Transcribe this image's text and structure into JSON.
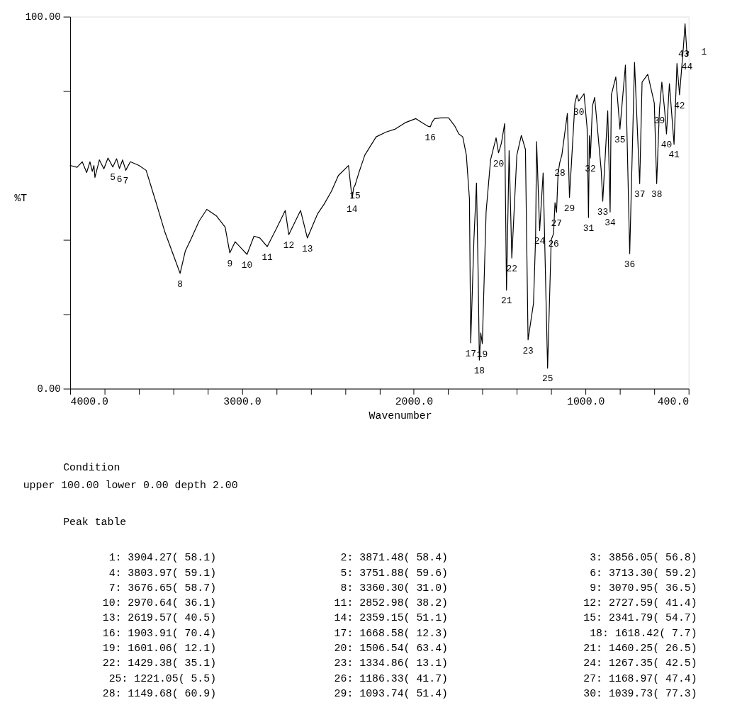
{
  "chart_data": {
    "type": "line",
    "xlabel": "Wavenumber",
    "ylabel": "%T",
    "xlim": [
      4000,
      400
    ],
    "xticks": [
      {
        "value": 4000,
        "label": "4000.0"
      },
      {
        "value": 3800,
        "label": null
      },
      {
        "value": 3600,
        "label": null
      },
      {
        "value": 3400,
        "label": null
      },
      {
        "value": 3200,
        "label": null
      },
      {
        "value": 3000,
        "label": "3000.0"
      },
      {
        "value": 2800,
        "label": null
      },
      {
        "value": 2600,
        "label": null
      },
      {
        "value": 2400,
        "label": null
      },
      {
        "value": 2200,
        "label": null
      },
      {
        "value": 2000,
        "label": "2000.0"
      },
      {
        "value": 1800,
        "label": null
      },
      {
        "value": 1600,
        "label": null
      },
      {
        "value": 1400,
        "label": null
      },
      {
        "value": 1200,
        "label": null
      },
      {
        "value": 1000,
        "label": "1000.0"
      },
      {
        "value": 800,
        "label": null
      },
      {
        "value": 600,
        "label": null
      },
      {
        "value": 400,
        "label": "400.0"
      }
    ],
    "ylim": [
      0,
      100
    ],
    "yticks": [
      {
        "value": 0,
        "label": "0.00"
      },
      {
        "value": 20,
        "label": null
      },
      {
        "value": 40,
        "label": null
      },
      {
        "value": 80,
        "label": null
      },
      {
        "value": 100,
        "label": "100.00"
      }
    ],
    "grid": false,
    "marker": "none",
    "line_style": "solid",
    "series": [
      {
        "color": "#000000",
        "x": [
          4000,
          3960,
          3930,
          3904.27,
          3885,
          3871.48,
          3862,
          3856.05,
          3830,
          3803.97,
          3780,
          3751.88,
          3730,
          3713.3,
          3695,
          3676.65,
          3650,
          3600,
          3558,
          3500,
          3448,
          3400,
          3360.3,
          3330,
          3294,
          3250,
          3205,
          3150,
          3098,
          3070.95,
          3040,
          3009,
          2970.64,
          2930,
          2896,
          2852.98,
          2800,
          2748,
          2727.59,
          2700,
          2659,
          2619.57,
          2560,
          2522,
          2480,
          2439,
          2380,
          2359.15,
          2350,
          2341.79,
          2320,
          2285,
          2219,
          2160,
          2107,
          2050,
          1988,
          1944,
          1915,
          1903.91,
          1895,
          1879,
          1840,
          1797,
          1760,
          1738,
          1715,
          1694,
          1676,
          1668.58,
          1650,
          1635,
          1625,
          1618.42,
          1610,
          1601.06,
          1579,
          1553,
          1521,
          1506.54,
          1490,
          1471,
          1460.25,
          1445,
          1429.38,
          1400,
          1374,
          1350,
          1334.86,
          1303,
          1291,
          1285,
          1267.35,
          1247,
          1221.05,
          1200,
          1186.33,
          1178,
          1168.97,
          1160,
          1149.68,
          1138,
          1106,
          1093.74,
          1062,
          1050,
          1039.73,
          1009,
          991,
          983,
          978,
          972,
          960,
          947,
          909,
          900,
          871,
          857,
          850,
          824,
          800,
          768,
          743,
          715,
          685,
          671,
          638,
          600,
          586,
          570,
          556,
          540,
          529,
          512,
          485,
          468,
          453,
          429,
          421,
          409,
          400
        ],
        "values": [
          60,
          59.5,
          61,
          58.1,
          61,
          58.4,
          60,
          56.8,
          61.5,
          59.1,
          62,
          59.6,
          61.8,
          59.2,
          61.5,
          58.7,
          61,
          60,
          58.7,
          50,
          42,
          36,
          31.0,
          37,
          40.5,
          45,
          48.2,
          46.5,
          43.4,
          36.5,
          39.5,
          38,
          36.1,
          41,
          40.5,
          38.2,
          43,
          47.9,
          41.4,
          44,
          47.9,
          40.5,
          47,
          49.6,
          53,
          57.3,
          60,
          51.1,
          54,
          54.7,
          58,
          62.8,
          67.7,
          69,
          69.8,
          71.5,
          72.6,
          71.3,
          70.5,
          70.4,
          71.5,
          72.6,
          72.8,
          72.8,
          70.5,
          68.5,
          67.7,
          62.8,
          51,
          12.3,
          40,
          55.3,
          30,
          7.7,
          15,
          12.1,
          47.5,
          61.5,
          67.4,
          63.4,
          66,
          71.3,
          26.5,
          64,
          35.1,
          62.8,
          68.1,
          64.3,
          13.1,
          23,
          40.5,
          66.4,
          42.5,
          58,
          5.5,
          40,
          41.7,
          50,
          47.4,
          58,
          60.9,
          62.8,
          74,
          51.4,
          76.8,
          79,
          77.3,
          79.3,
          70,
          46,
          68,
          62,
          76,
          78.3,
          58.7,
          50.4,
          74.7,
          47.5,
          79,
          83.8,
          69.8,
          87,
          36.3,
          87.7,
          55.1,
          82.4,
          84.5,
          76.8,
          55.1,
          75,
          82.4,
          75,
          68.5,
          82,
          65.7,
          87.4,
          79,
          92.8,
          98.1,
          89.4,
          90.6
        ]
      }
    ],
    "annotations": [
      "Condition",
      "upper 100.00    lower   0.00    depth   2.00",
      "Peak table",
      "1:  3904.27( 58.1)",
      "2:  3871.48( 58.4)",
      "3:  3856.05( 56.8)",
      "4:  3803.97( 59.1)",
      "5:  3751.88( 59.6)",
      "6:  3713.30( 59.2)",
      "7:  3676.65( 58.7)",
      "8:  3360.30( 31.0)",
      "9:  3070.95( 36.5)",
      "10:  2970.64( 36.1)",
      "11:  2852.98( 38.2)",
      "12:  2727.59( 41.4)",
      "13:  2619.57( 40.5)",
      "14:  2359.15( 51.1)",
      "15:  2341.79( 54.7)",
      "16:  1903.91( 70.4)",
      "17:  1668.58( 12.3)",
      "18:  1618.42(  7.7)",
      "19:  1601.06( 12.1)",
      "20:  1506.54( 63.4)",
      "21:  1460.25( 26.5)",
      "22:  1429.38( 35.1)",
      "23:  1334.86( 13.1)",
      "24:  1267.35( 42.5)",
      "25:  1221.05(  5.5)",
      "26:  1186.33( 41.7)",
      "27:  1168.97( 47.4)",
      "28:  1149.68( 60.9)",
      "29:  1093.74( 51.4)",
      "30:  1039.73( 77.3)",
      {
        "text": "5",
        "x": 3751.88,
        "y": 59.6
      },
      {
        "text": "6",
        "x": 3713.3,
        "y": 59.2
      },
      {
        "text": "7",
        "x": 3676.65,
        "y": 58.7
      },
      {
        "text": "8",
        "x": 3360.3,
        "y": 31.0
      },
      {
        "text": "9",
        "x": 3070.95,
        "y": 36.5
      },
      {
        "text": "10",
        "x": 2970.64,
        "y": 36.1
      },
      {
        "text": "11",
        "x": 2852.98,
        "y": 38.2
      },
      {
        "text": "12",
        "x": 2727.59,
        "y": 41.4
      },
      {
        "text": "13",
        "x": 2619.57,
        "y": 40.5
      },
      {
        "text": "15",
        "x": 2341.79,
        "y": 54.7
      },
      {
        "text": "14",
        "x": 2359.15,
        "y": 51.1
      },
      {
        "text": "16",
        "x": 1903.91,
        "y": 70.4
      },
      {
        "text": "17",
        "x": 1668.58,
        "y": 12.3
      },
      {
        "text": "18",
        "x": 1618.42,
        "y": 7.7
      },
      {
        "text": "19",
        "x": 1601.06,
        "y": 12.1
      },
      {
        "text": "20",
        "x": 1506.54,
        "y": 63.4
      },
      {
        "text": "21",
        "x": 1460.25,
        "y": 26.5
      },
      {
        "text": "22",
        "x": 1429.38,
        "y": 35.1
      },
      {
        "text": "23",
        "x": 1334.86,
        "y": 13.1
      },
      {
        "text": "24",
        "x": 1267.35,
        "y": 42.5
      },
      {
        "text": "26",
        "x": 1186.33,
        "y": 41.7
      },
      {
        "text": "25",
        "x": 1221.05,
        "y": 5.5
      },
      {
        "text": "27",
        "x": 1168.97,
        "y": 47.4
      },
      {
        "text": "28",
        "x": 1149.68,
        "y": 60.9
      },
      {
        "text": "29",
        "x": 1093.74,
        "y": 51.4
      },
      {
        "text": "30",
        "x": 1039.73,
        "y": 77.3
      },
      {
        "text": "31",
        "x": 983,
        "y": 46
      },
      {
        "text": "32",
        "x": 972,
        "y": 62
      },
      {
        "text": "33",
        "x": 900,
        "y": 50.4
      },
      {
        "text": "34",
        "x": 857,
        "y": 47.5
      },
      {
        "text": "35",
        "x": 800,
        "y": 69.8
      },
      {
        "text": "36",
        "x": 743,
        "y": 36.3
      },
      {
        "text": "37",
        "x": 685,
        "y": 55.1
      },
      {
        "text": "38",
        "x": 586,
        "y": 55.1
      },
      {
        "text": "39",
        "x": 570,
        "y": 75
      },
      {
        "text": "40",
        "x": 529,
        "y": 68.5
      },
      {
        "text": "41",
        "x": 485,
        "y": 65.7
      },
      {
        "text": "42",
        "x": 453,
        "y": 79
      },
      {
        "text": "43",
        "x": 429,
        "y": 92.8
      },
      {
        "text": "44",
        "x": 409,
        "y": 89.4
      },
      {
        "text": "1",
        "x": 400,
        "y": 90.6
      }
    ]
  }
}
